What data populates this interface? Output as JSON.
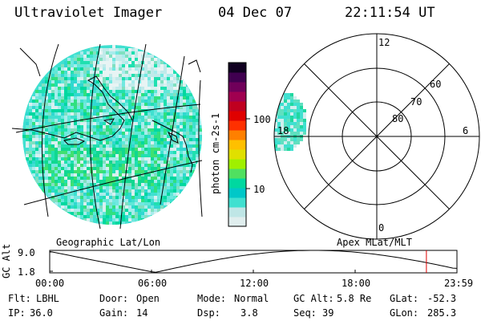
{
  "header": {
    "instrument": "Ultraviolet Imager",
    "date": "04 Dec 07",
    "time": "22:11:54 UT"
  },
  "colorbar": {
    "unit_label": "photon cm-2s-1",
    "ticks": [
      "100",
      "10"
    ],
    "colors": [
      "#e0eeee",
      "#bfe6e6",
      "#40e0d0",
      "#00c8c8",
      "#00d8a0",
      "#50e060",
      "#a0f000",
      "#e0e000",
      "#ffc000",
      "#ff8000",
      "#ff3000",
      "#e00000",
      "#c00020",
      "#a00050",
      "#70005a",
      "#400050",
      "#100020"
    ]
  },
  "map_left": {
    "label": "Geographic Lat/Lon"
  },
  "polar_right": {
    "label": "Apex MLat/MLT",
    "mlt_labels": {
      "top": "12",
      "bottom": "0",
      "left": "18",
      "right": "6"
    },
    "lat_labels": [
      "60",
      "70",
      "80"
    ]
  },
  "timeline": {
    "axis_label": "GC Alt",
    "y_ticks": [
      "9.0",
      "1.8"
    ],
    "x_ticks": [
      "00:00",
      "06:00",
      "12:00",
      "18:00",
      "23:59"
    ],
    "current_marker_hour": 22.2
  },
  "status": {
    "filter_label": "Flt:",
    "filter_value": "LBHL",
    "ip_label": "IP:",
    "ip_value": "36.0",
    "door_label": "Door:",
    "door_value": "Open",
    "gain_label": "Gain:",
    "gain_value": "14",
    "mode_label": "Mode:",
    "mode_value": "Normal",
    "dsp_label": "Dsp:",
    "dsp_value": "3.8",
    "gcalt_label": "GC Alt:",
    "gcalt_value": "5.8 Re",
    "seq_label": "Seq:",
    "seq_value": "39",
    "glat_label": "GLat:",
    "glat_value": "-52.3",
    "glon_label": "GLon:",
    "glon_value": "285.3"
  }
}
